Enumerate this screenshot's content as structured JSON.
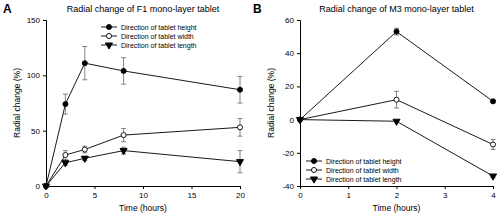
{
  "chart_data": [
    {
      "type": "line",
      "title": "Radial change of F1 mono-layer tablet",
      "annotations": [
        "A"
      ],
      "x_label": "Time (hours)",
      "y_label": "Radial change (%)",
      "x": [
        0,
        2,
        4,
        8,
        20
      ],
      "xlim": [
        0,
        20
      ],
      "xticks": [
        0,
        5,
        10,
        15,
        20
      ],
      "ylim": [
        0,
        150
      ],
      "yticks": [
        0,
        50,
        100,
        150
      ],
      "legend": "upper left",
      "series": [
        {
          "name": "Direction of tablet height",
          "color": "#000000",
          "marker": "circle",
          "values": [
            0,
            74,
            111,
            104,
            87
          ],
          "errors": [
            0,
            9,
            15,
            12,
            12
          ]
        },
        {
          "name": "Direction of tablet width",
          "color": "#000000",
          "marker": "open-circle",
          "values": [
            0,
            28,
            33,
            46,
            53
          ],
          "errors": [
            0,
            4,
            3,
            6,
            8
          ]
        },
        {
          "name": "Direction of tablet length",
          "color": "#000000",
          "marker": "triangle-down",
          "values": [
            0,
            21,
            25,
            32,
            22
          ],
          "errors": [
            0,
            2,
            2,
            3,
            10
          ]
        }
      ]
    },
    {
      "type": "line",
      "title": "Radial change of M3 mono-layer tablet",
      "annotations": [
        "B"
      ],
      "x_label": "Time (hours)",
      "y_label": "Radial change (%)",
      "x": [
        0,
        2,
        4
      ],
      "xlim": [
        0,
        4
      ],
      "xticks": [
        0,
        1,
        2,
        3,
        4
      ],
      "ylim": [
        -40,
        60
      ],
      "yticks": [
        -40,
        -20,
        0,
        20,
        40,
        60
      ],
      "legend": "lower left",
      "series": [
        {
          "name": "Direction of tablet height",
          "color": "#000000",
          "marker": "circle",
          "values": [
            0,
            53,
            11
          ],
          "errors": [
            0,
            2,
            1
          ]
        },
        {
          "name": "Direction of tablet width",
          "color": "#000000",
          "marker": "open-circle",
          "values": [
            0,
            12,
            -15
          ],
          "errors": [
            0,
            5,
            3
          ]
        },
        {
          "name": "Direction of tablet length",
          "color": "#000000",
          "marker": "triangle-down",
          "values": [
            0,
            -1,
            -34
          ],
          "errors": [
            0,
            0,
            1
          ]
        }
      ]
    }
  ]
}
